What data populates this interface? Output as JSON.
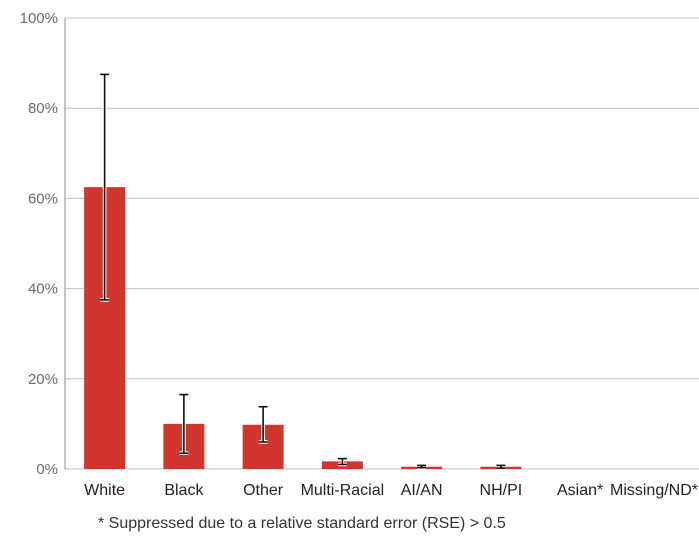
{
  "chart_data": {
    "type": "bar",
    "categories": [
      "White",
      "Black",
      "Other",
      "Multi-Racial",
      "AI/AN",
      "NH/PI",
      "Asian*",
      "Missing/ND*"
    ],
    "values": [
      62.5,
      10.0,
      9.8,
      1.7,
      0.5,
      0.5,
      0,
      0
    ],
    "error_low": [
      37.5,
      3.5,
      6.0,
      1.0,
      0.3,
      0.2,
      null,
      null
    ],
    "error_high": [
      87.5,
      16.5,
      13.8,
      2.3,
      0.8,
      0.8,
      null,
      null
    ],
    "ylim": [
      0,
      100
    ],
    "yticks": [
      0,
      20,
      40,
      60,
      80,
      100
    ],
    "ytick_labels": [
      "0%",
      "20%",
      "40%",
      "60%",
      "80%",
      "100%"
    ],
    "title": "",
    "xlabel": "",
    "ylabel": "",
    "grid": true,
    "legend": "none",
    "bar_color": "#d0362e",
    "footnote": "* Suppressed due to a relative standard error (RSE) > 0.5"
  }
}
